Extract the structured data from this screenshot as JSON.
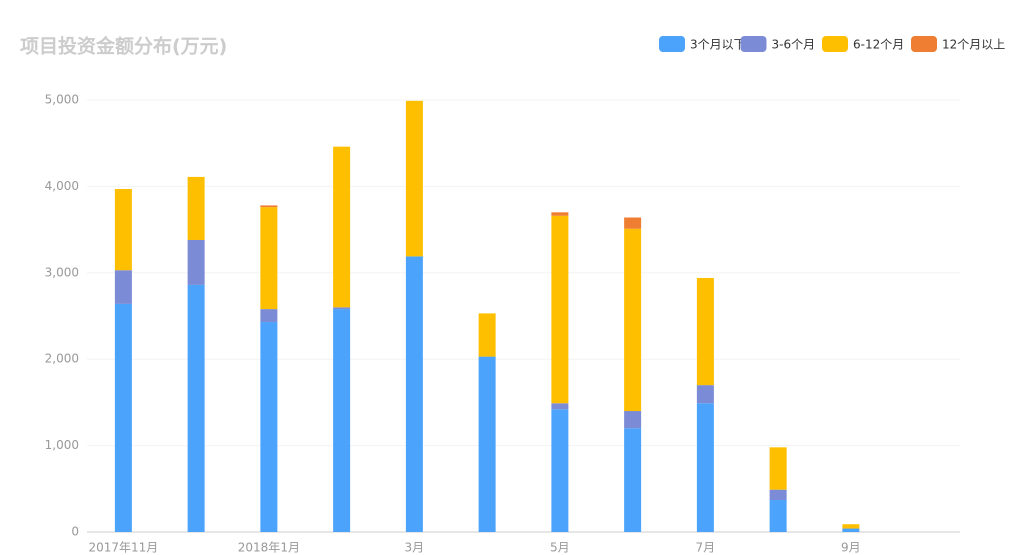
{
  "chart_data": {
    "type": "stacked-bar",
    "title": "项目投资金额分布(万元)",
    "categories": [
      "2017年11月",
      null,
      "2018年1月",
      null,
      "3月",
      null,
      "5月",
      null,
      "7月",
      null,
      "9月",
      null
    ],
    "series": [
      {
        "name": "3个月以下",
        "color": "#4ba3fc",
        "values": [
          2640,
          2860,
          2430,
          2580,
          3190,
          2030,
          1420,
          1200,
          1490,
          370,
          40,
          null
        ]
      },
      {
        "name": "3-6个月",
        "color": "#7b8bd5",
        "values": [
          390,
          520,
          150,
          20,
          0,
          0,
          70,
          200,
          210,
          120,
          0,
          null
        ]
      },
      {
        "name": "6-12个月",
        "color": "#fdbf00",
        "values": [
          940,
          730,
          1180,
          1860,
          1800,
          500,
          2170,
          2110,
          1240,
          490,
          50,
          null
        ]
      },
      {
        "name": "12个月以上",
        "color": "#ef7e33",
        "values": [
          0,
          0,
          20,
          0,
          0,
          0,
          40,
          130,
          0,
          0,
          0,
          null
        ]
      }
    ],
    "ylim": [
      0,
      5000
    ],
    "yticks": [
      0,
      {
        "value": 1000,
        "label": "1,000"
      },
      {
        "value": 2000,
        "label": "2,000"
      },
      {
        "value": 3000,
        "label": "3,000"
      },
      {
        "value": 4000,
        "label": "4,000"
      },
      {
        "value": 5000,
        "label": "5,000"
      }
    ],
    "grid": true,
    "legend": "top-right"
  }
}
